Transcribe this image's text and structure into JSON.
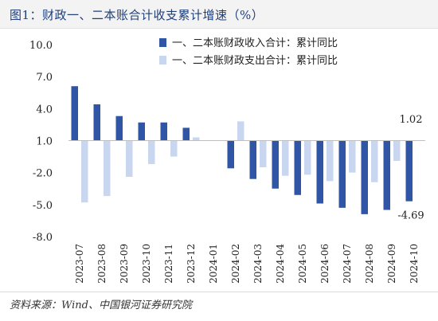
{
  "figure": {
    "title": "图1：财政一、二本账合计收支累计增速（%）",
    "source": "资料来源：Wind、中国银河证券研究院"
  },
  "chart_data": {
    "type": "bar",
    "categories": [
      "2023-07",
      "2023-08",
      "2023-09",
      "2023-10",
      "2023-11",
      "2023-12",
      "2024-01",
      "2024-02",
      "2024-03",
      "2024-04",
      "2024-05",
      "2024-06",
      "2024-07",
      "2024-08",
      "2024-09",
      "2024-10"
    ],
    "series": [
      {
        "name": "一、二本账财政收入合计：累计同比",
        "color": "#2f55a4",
        "values": [
          6.1,
          4.4,
          3.3,
          2.7,
          2.7,
          2.2,
          null,
          -1.6,
          -2.6,
          -3.5,
          -4.1,
          -4.9,
          -5.3,
          -5.9,
          -5.5,
          -4.69
        ]
      },
      {
        "name": "一、二本账财政支出合计：累计同比",
        "color": "#c8d6ef",
        "values": [
          -4.8,
          -4.2,
          -2.4,
          -1.2,
          -0.5,
          1.3,
          null,
          2.8,
          -1.5,
          -2.3,
          -2.2,
          -2.8,
          -2.0,
          -2.9,
          -0.9,
          1.02
        ]
      }
    ],
    "ylim": [
      -8.0,
      10.0
    ],
    "yticks": [
      "10.0",
      "7.0",
      "4.0",
      "1.0",
      "-2.0",
      "-5.0",
      "-8.0"
    ],
    "data_labels": [
      {
        "series": 1,
        "category": "2024-10",
        "text": "1.02"
      },
      {
        "series": 0,
        "category": "2024-10",
        "text": "-4.69"
      }
    ],
    "legend_position": "top-right",
    "grid": false
  }
}
